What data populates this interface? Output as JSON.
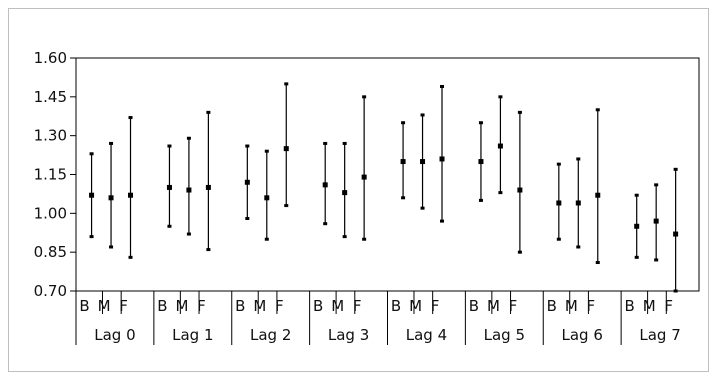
{
  "chart_data": {
    "type": "errorbar",
    "title": "",
    "xlabel": "",
    "ylabel": "",
    "ylim": [
      0.7,
      1.6
    ],
    "yticks": [
      "1.60",
      "1.45",
      "1.30",
      "1.15",
      "1.00",
      "0.85",
      "0.70"
    ],
    "ytick_values": [
      1.6,
      1.45,
      1.3,
      1.15,
      1.0,
      0.85,
      0.7
    ],
    "grid": false,
    "subcategories": [
      "B",
      "M",
      "F"
    ],
    "groups": [
      {
        "label": "Lag 0",
        "points": [
          {
            "sub": "B",
            "estimate": 1.07,
            "lower": 0.91,
            "upper": 1.23
          },
          {
            "sub": "M",
            "estimate": 1.06,
            "lower": 0.87,
            "upper": 1.27
          },
          {
            "sub": "F",
            "estimate": 1.07,
            "lower": 0.83,
            "upper": 1.37
          }
        ]
      },
      {
        "label": "Lag 1",
        "points": [
          {
            "sub": "B",
            "estimate": 1.1,
            "lower": 0.95,
            "upper": 1.26
          },
          {
            "sub": "M",
            "estimate": 1.09,
            "lower": 0.92,
            "upper": 1.29
          },
          {
            "sub": "F",
            "estimate": 1.1,
            "lower": 0.86,
            "upper": 1.39
          }
        ]
      },
      {
        "label": "Lag 2",
        "points": [
          {
            "sub": "B",
            "estimate": 1.12,
            "lower": 0.98,
            "upper": 1.26
          },
          {
            "sub": "M",
            "estimate": 1.06,
            "lower": 0.9,
            "upper": 1.24
          },
          {
            "sub": "F",
            "estimate": 1.25,
            "lower": 1.03,
            "upper": 1.5
          }
        ]
      },
      {
        "label": "Lag 3",
        "points": [
          {
            "sub": "B",
            "estimate": 1.11,
            "lower": 0.96,
            "upper": 1.27
          },
          {
            "sub": "M",
            "estimate": 1.08,
            "lower": 0.91,
            "upper": 1.27
          },
          {
            "sub": "F",
            "estimate": 1.14,
            "lower": 0.9,
            "upper": 1.45
          }
        ]
      },
      {
        "label": "Lag 4",
        "points": [
          {
            "sub": "B",
            "estimate": 1.2,
            "lower": 1.06,
            "upper": 1.35
          },
          {
            "sub": "M",
            "estimate": 1.2,
            "lower": 1.02,
            "upper": 1.38
          },
          {
            "sub": "F",
            "estimate": 1.21,
            "lower": 0.97,
            "upper": 1.49
          }
        ]
      },
      {
        "label": "Lag 5",
        "points": [
          {
            "sub": "B",
            "estimate": 1.2,
            "lower": 1.05,
            "upper": 1.35
          },
          {
            "sub": "M",
            "estimate": 1.26,
            "lower": 1.08,
            "upper": 1.45
          },
          {
            "sub": "F",
            "estimate": 1.09,
            "lower": 0.85,
            "upper": 1.39
          }
        ]
      },
      {
        "label": "Lag 6",
        "points": [
          {
            "sub": "B",
            "estimate": 1.04,
            "lower": 0.9,
            "upper": 1.19
          },
          {
            "sub": "M",
            "estimate": 1.04,
            "lower": 0.87,
            "upper": 1.21
          },
          {
            "sub": "F",
            "estimate": 1.07,
            "lower": 0.81,
            "upper": 1.4
          }
        ]
      },
      {
        "label": "Lag 7",
        "points": [
          {
            "sub": "B",
            "estimate": 0.95,
            "lower": 0.83,
            "upper": 1.07
          },
          {
            "sub": "M",
            "estimate": 0.97,
            "lower": 0.82,
            "upper": 1.11
          },
          {
            "sub": "F",
            "estimate": 0.92,
            "lower": 0.7,
            "upper": 1.17
          }
        ]
      }
    ]
  }
}
